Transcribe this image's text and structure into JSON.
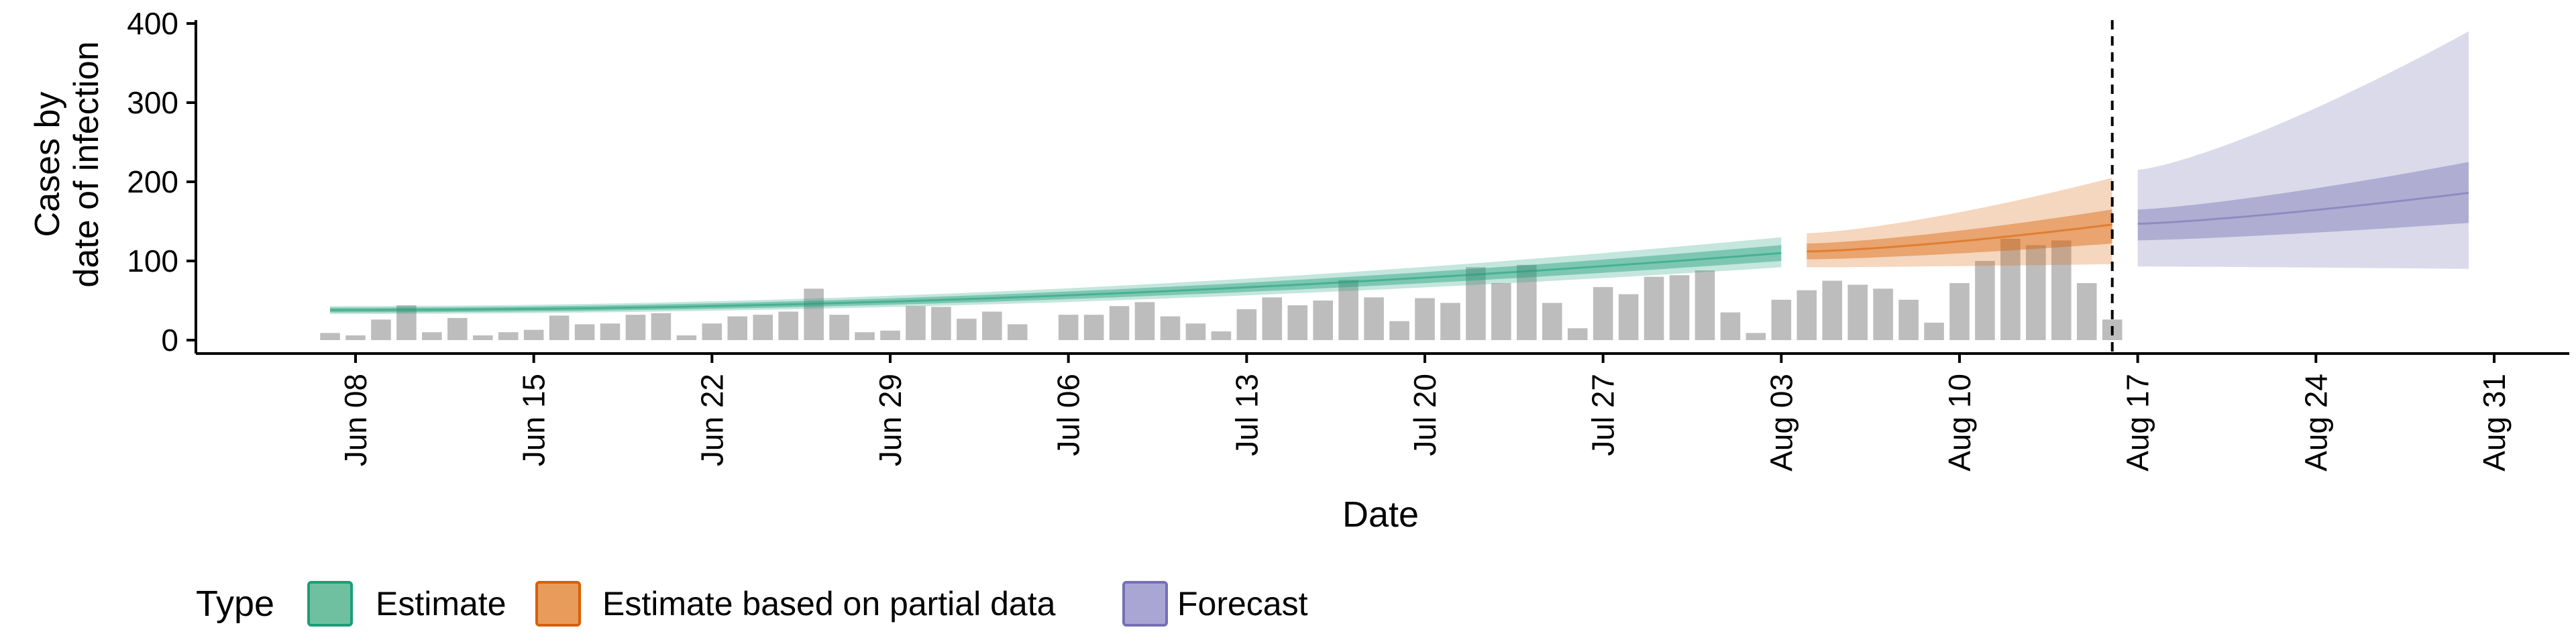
{
  "chart_data": {
    "type": "bar",
    "xlabel": "Date",
    "ylabel_lines": [
      "Cases by",
      "date of infection"
    ],
    "ylim": [
      0,
      400
    ],
    "yticks": [
      0,
      100,
      200,
      300,
      400
    ],
    "x_tick_dates": [
      "2020-06-08",
      "2020-06-15",
      "2020-06-22",
      "2020-06-29",
      "2020-07-06",
      "2020-07-13",
      "2020-07-20",
      "2020-07-27",
      "2020-08-03",
      "2020-08-10",
      "2020-08-17",
      "2020-08-24",
      "2020-08-31"
    ],
    "x_tick_labels": [
      "Jun 08",
      "Jun 15",
      "Jun 22",
      "Jun 29",
      "Jul 06",
      "Jul 13",
      "Jul 20",
      "Jul 27",
      "Aug 03",
      "Aug 10",
      "Aug 17",
      "Aug 24",
      "Aug 31"
    ],
    "x_range": [
      "2020-06-01",
      "2020-09-02"
    ],
    "observed_cases": {
      "start_date": "2020-06-07",
      "values": [
        9,
        6,
        26,
        44,
        10,
        28,
        6,
        10,
        13,
        31,
        20,
        21,
        32,
        34,
        6,
        21,
        30,
        32,
        36,
        65,
        32,
        10,
        12,
        43,
        42,
        27,
        36,
        20,
        0,
        32,
        32,
        43,
        48,
        30,
        21,
        11,
        39,
        54,
        44,
        50,
        76,
        54,
        24,
        53,
        47,
        92,
        72,
        95,
        47,
        15,
        67,
        58,
        80,
        82,
        88,
        35,
        9,
        51,
        63,
        75,
        70,
        65,
        51,
        22,
        72,
        100,
        128,
        120,
        126,
        72,
        26
      ]
    },
    "vline_date": "2020-08-16",
    "series": [
      {
        "name": "Estimate",
        "color": "#1b9e77",
        "x_start": "2020-06-07",
        "x_end": "2020-08-03",
        "center": [
          38,
          110
        ],
        "inner": [
          [
            35,
            41
          ],
          [
            100,
            120
          ]
        ],
        "outer": [
          [
            33,
            43
          ],
          [
            92,
            130
          ]
        ],
        "growth": 2.0
      },
      {
        "name": "Estimate based on partial data",
        "color": "#d95f02",
        "x_start": "2020-08-04",
        "x_end": "2020-08-16",
        "center": [
          112,
          146
        ],
        "inner": [
          [
            102,
            122
          ],
          [
            122,
            165
          ]
        ],
        "outer": [
          [
            92,
            135
          ],
          [
            96,
            205
          ]
        ],
        "growth": 1.4
      },
      {
        "name": "Forecast",
        "color": "#7570b3",
        "x_start": "2020-08-17",
        "x_end": "2020-08-30",
        "center": [
          147,
          186
        ],
        "inner": [
          [
            126,
            165
          ],
          [
            148,
            225
          ]
        ],
        "outer": [
          [
            93,
            215
          ],
          [
            90,
            390
          ]
        ],
        "growth": 1.3
      }
    ],
    "legend": {
      "title": "Type",
      "position": "bottom-left",
      "items": [
        {
          "label": "Estimate",
          "fill": "#6fc0a1",
          "stroke": "#1b9e77"
        },
        {
          "label": "Estimate based on partial data",
          "fill": "#e89c5c",
          "stroke": "#d95f02"
        },
        {
          "label": "Forecast",
          "fill": "#a9a6d4",
          "stroke": "#7570b3"
        }
      ]
    },
    "grid": false
  }
}
